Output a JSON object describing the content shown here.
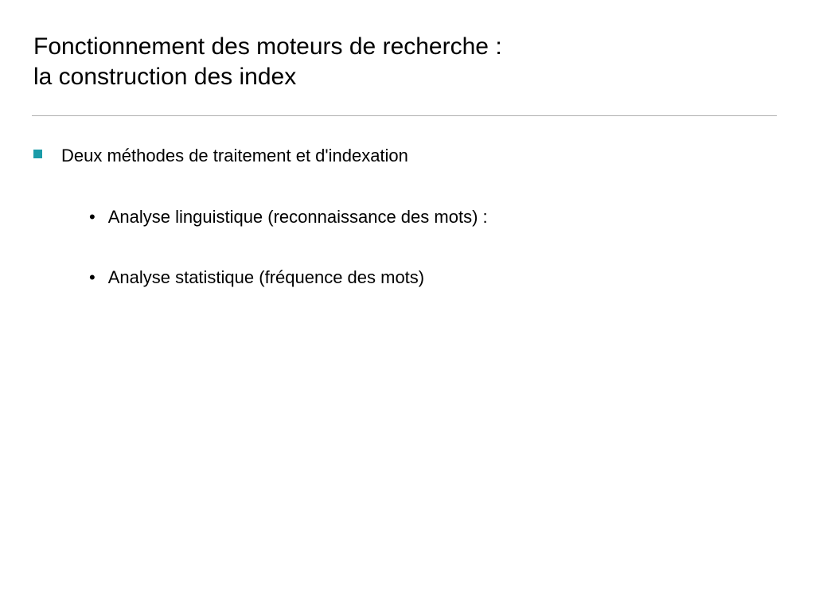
{
  "slide": {
    "title_line1": "Fonctionnement des moteurs de recherche :",
    "title_line2": "la construction des index",
    "bullets": {
      "level1": {
        "text": "Deux méthodes de traitement et d'indexation"
      },
      "level2": [
        {
          "text": "Analyse linguistique (reconnaissance des mots) :"
        },
        {
          "text": "Analyse statistique (fréquence des mots)"
        }
      ]
    }
  },
  "styling": {
    "background_color": "#ffffff",
    "text_color": "#000000",
    "title_fontsize": 30,
    "body_fontsize": 22,
    "divider_color": "#b0b0b0",
    "square_bullet_color": "#1a9ba8",
    "square_bullet_size": 11,
    "font_family": "Arial"
  }
}
